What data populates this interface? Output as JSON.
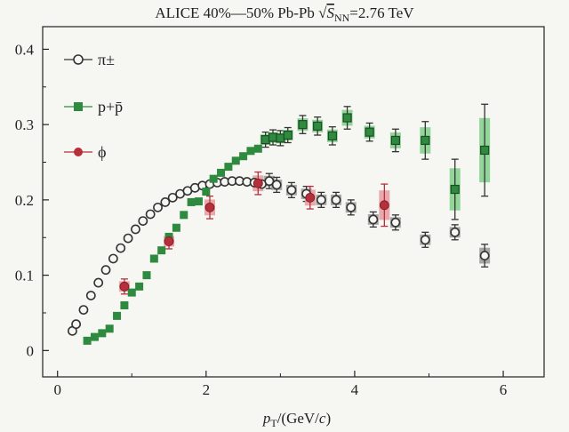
{
  "chart_data": {
    "type": "scatter",
    "title_parts": {
      "prefix": "ALICE 40%—50% Pb-Pb ",
      "sqrt": "√",
      "s": "S",
      "sub": "NN",
      "suffix": "=2.76 TeV"
    },
    "xlabel_parts": {
      "p": "p",
      "sub": "T",
      "rest": "/(GeV/",
      "c": "c",
      "close": ")"
    },
    "ylabel": "",
    "xlim": [
      -0.2,
      6.55
    ],
    "ylim": [
      -0.035,
      0.43
    ],
    "x_ticks": [
      0,
      2,
      4,
      6
    ],
    "x_tick_labels": [
      "0",
      "2",
      "4",
      "6"
    ],
    "y_ticks": [
      0,
      0.1,
      0.2,
      0.3,
      0.4
    ],
    "y_tick_labels": [
      "0",
      "0.1",
      "0.2",
      "0.3",
      "0.4"
    ],
    "legend_position": "top-left",
    "series": [
      {
        "name": "π±",
        "marker": "circle-open",
        "color": "#333333",
        "sys_color": "#9a9a9a",
        "points": [
          [
            0.2,
            0.026,
            0
          ],
          [
            0.25,
            0.035,
            0
          ],
          [
            0.35,
            0.054,
            0
          ],
          [
            0.45,
            0.073,
            0
          ],
          [
            0.55,
            0.09,
            0
          ],
          [
            0.65,
            0.107,
            0
          ],
          [
            0.75,
            0.122,
            0
          ],
          [
            0.85,
            0.136,
            0
          ],
          [
            0.95,
            0.149,
            0
          ],
          [
            1.05,
            0.161,
            0
          ],
          [
            1.15,
            0.172,
            0
          ],
          [
            1.25,
            0.181,
            0
          ],
          [
            1.35,
            0.19,
            0
          ],
          [
            1.45,
            0.197,
            0
          ],
          [
            1.55,
            0.203,
            0
          ],
          [
            1.65,
            0.208,
            0
          ],
          [
            1.75,
            0.212,
            0
          ],
          [
            1.85,
            0.216,
            0
          ],
          [
            1.95,
            0.219,
            0
          ],
          [
            2.05,
            0.221,
            0
          ],
          [
            2.15,
            0.223,
            0
          ],
          [
            2.25,
            0.224,
            0
          ],
          [
            2.35,
            0.225,
            0
          ],
          [
            2.45,
            0.225,
            0
          ],
          [
            2.55,
            0.224,
            0
          ],
          [
            2.65,
            0.223,
            0
          ],
          [
            2.75,
            0.221,
            0
          ],
          [
            2.85,
            0.225,
            0.01
          ],
          [
            2.95,
            0.22,
            0.01
          ],
          [
            3.15,
            0.213,
            0.01
          ],
          [
            3.35,
            0.208,
            0.01
          ],
          [
            3.55,
            0.2,
            0.01
          ],
          [
            3.75,
            0.2,
            0.01
          ],
          [
            3.95,
            0.19,
            0.01
          ],
          [
            4.25,
            0.174,
            0.01
          ],
          [
            4.55,
            0.17,
            0.01
          ],
          [
            4.95,
            0.147,
            0.01
          ],
          [
            5.35,
            0.157,
            0.01
          ],
          [
            5.75,
            0.126,
            0.015
          ]
        ]
      },
      {
        "name": "p+p̄",
        "marker": "square",
        "color": "#2e8a3e",
        "sys_color": "#7fcf8a",
        "points": [
          [
            0.4,
            0.013,
            0
          ],
          [
            0.5,
            0.018,
            0
          ],
          [
            0.6,
            0.023,
            0
          ],
          [
            0.7,
            0.029,
            0
          ],
          [
            0.8,
            0.046,
            0
          ],
          [
            0.9,
            0.06,
            0
          ],
          [
            1.0,
            0.077,
            0
          ],
          [
            1.1,
            0.085,
            0
          ],
          [
            1.2,
            0.1,
            0
          ],
          [
            1.3,
            0.122,
            0
          ],
          [
            1.4,
            0.133,
            0
          ],
          [
            1.5,
            0.151,
            0
          ],
          [
            1.6,
            0.163,
            0
          ],
          [
            1.7,
            0.18,
            0
          ],
          [
            1.8,
            0.197,
            0
          ],
          [
            1.9,
            0.198,
            0
          ],
          [
            2.0,
            0.211,
            0
          ],
          [
            2.1,
            0.228,
            0
          ],
          [
            2.2,
            0.236,
            0
          ],
          [
            2.3,
            0.244,
            0
          ],
          [
            2.4,
            0.252,
            0
          ],
          [
            2.5,
            0.258,
            0
          ],
          [
            2.6,
            0.265,
            0
          ],
          [
            2.7,
            0.268,
            0
          ],
          [
            2.8,
            0.28,
            0.01
          ],
          [
            2.9,
            0.283,
            0.01
          ],
          [
            3.0,
            0.282,
            0.01
          ],
          [
            3.1,
            0.286,
            0.01
          ],
          [
            3.3,
            0.3,
            0.012
          ],
          [
            3.5,
            0.298,
            0.012
          ],
          [
            3.7,
            0.285,
            0.012
          ],
          [
            3.9,
            0.309,
            0.015
          ],
          [
            4.2,
            0.29,
            0.012
          ],
          [
            4.55,
            0.279,
            0.015
          ],
          [
            4.95,
            0.279,
            0.025
          ],
          [
            5.35,
            0.214,
            0.04
          ],
          [
            5.75,
            0.266,
            0.061
          ]
        ]
      },
      {
        "name": "ϕ",
        "marker": "circle-filled",
        "color": "#b5303b",
        "sys_color": "#e59aa0",
        "points": [
          [
            0.9,
            0.085,
            0.01
          ],
          [
            1.5,
            0.145,
            0.01
          ],
          [
            2.05,
            0.19,
            0.015
          ],
          [
            2.7,
            0.222,
            0.015
          ],
          [
            3.4,
            0.203,
            0.015
          ],
          [
            4.4,
            0.193,
            0.028
          ]
        ]
      }
    ]
  }
}
